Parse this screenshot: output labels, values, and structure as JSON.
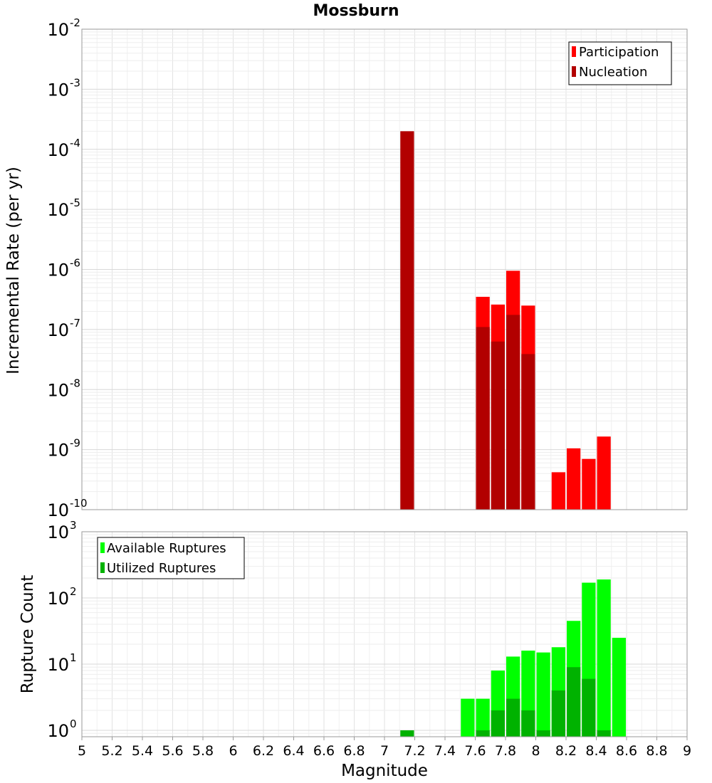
{
  "chart_data": [
    {
      "type": "bar",
      "title": "Mossburn",
      "xlabel": "",
      "ylabel": "Incremental Rate (per yr)",
      "yscale": "log",
      "ylim": [
        1e-10,
        0.01
      ],
      "xlim": [
        5,
        9
      ],
      "bin_width": 0.1,
      "y_tick_labels": [
        {
          "value": 1e-10,
          "base": "10",
          "exp": "-10"
        },
        {
          "value": 1e-09,
          "base": "10",
          "exp": "-9"
        },
        {
          "value": 1e-08,
          "base": "10",
          "exp": "-8"
        },
        {
          "value": 1e-07,
          "base": "10",
          "exp": "-7"
        },
        {
          "value": 1e-06,
          "base": "10",
          "exp": "-6"
        },
        {
          "value": 1e-05,
          "base": "10",
          "exp": "-5"
        },
        {
          "value": 0.0001,
          "base": "10",
          "exp": "-4"
        },
        {
          "value": 0.001,
          "base": "10",
          "exp": "-3"
        },
        {
          "value": 0.01,
          "base": "10",
          "exp": "-2"
        }
      ],
      "legend_position": "top-right",
      "series": [
        {
          "name": "Participation",
          "color": "#ff0000",
          "x": [
            7.65,
            7.75,
            7.85,
            7.95,
            8.15,
            8.25,
            8.35,
            8.45
          ],
          "values": [
            3.5e-07,
            2.6e-07,
            9.5e-07,
            2.5e-07,
            4.2e-10,
            1.05e-09,
            7e-10,
            1.65e-09
          ]
        },
        {
          "name": "Nucleation",
          "color": "#b20000",
          "x": [
            7.15,
            7.65,
            7.75,
            7.85,
            7.95
          ],
          "values": [
            0.0002,
            1.1e-07,
            6.3e-08,
            1.75e-07,
            3.9e-08
          ]
        }
      ]
    },
    {
      "type": "bar",
      "title": "",
      "xlabel": "Magnitude",
      "ylabel": "Rupture Count",
      "yscale": "log",
      "ylim": [
        0.8,
        1000
      ],
      "xlim": [
        5,
        9
      ],
      "bin_width": 0.1,
      "x_tick_labels": [
        "5",
        "5.2",
        "5.4",
        "5.6",
        "5.8",
        "6",
        "6.2",
        "6.4",
        "6.6",
        "6.8",
        "7",
        "7.2",
        "7.4",
        "7.6",
        "7.8",
        "8",
        "8.2",
        "8.4",
        "8.6",
        "8.8",
        "9"
      ],
      "y_tick_labels": [
        {
          "value": 1,
          "base": "10",
          "exp": "0"
        },
        {
          "value": 10,
          "base": "10",
          "exp": "1"
        },
        {
          "value": 100,
          "base": "10",
          "exp": "2"
        },
        {
          "value": 1000,
          "base": "10",
          "exp": "3"
        }
      ],
      "legend_position": "top-left",
      "series": [
        {
          "name": "Available Ruptures",
          "color": "#00ff00",
          "x": [
            7.55,
            7.65,
            7.75,
            7.85,
            7.95,
            8.05,
            8.15,
            8.25,
            8.35,
            8.45,
            8.55
          ],
          "values": [
            3,
            3,
            8,
            13,
            16,
            15,
            18,
            45,
            170,
            190,
            25
          ]
        },
        {
          "name": "Utilized Ruptures",
          "color": "#00b200",
          "x": [
            7.15,
            7.65,
            7.75,
            7.85,
            7.95,
            8.05,
            8.15,
            8.25,
            8.35,
            8.45
          ],
          "values": [
            1,
            1,
            2,
            3,
            2,
            1,
            4,
            9,
            6,
            1
          ]
        }
      ]
    }
  ]
}
